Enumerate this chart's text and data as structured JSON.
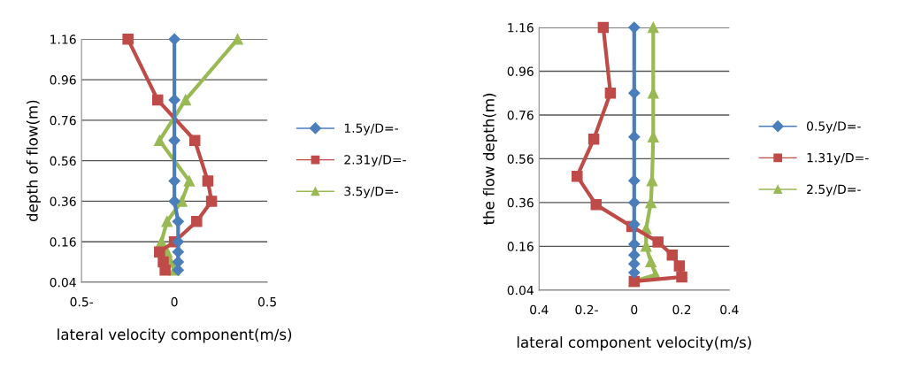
{
  "chart_data": [
    {
      "type": "line",
      "xlabel": "lateral velocity component(m/s)",
      "ylabel": "depth of flow(m)",
      "xlim": [
        -0.5,
        0.5
      ],
      "xticks": [
        {
          "value": -0.5,
          "label": "0.5-"
        },
        0,
        0.5
      ],
      "ylim": [
        -0.04,
        1.16
      ],
      "yticks": [
        {
          "value": -0.04,
          "label": "0.04"
        },
        0.16,
        0.36,
        0.56,
        0.76,
        0.96,
        1.16
      ],
      "grid": "y",
      "legend": "right",
      "line_style": "solid",
      "series": [
        {
          "name": "1.5y/D=-",
          "color": "#4a7ebb",
          "marker": "diamond",
          "x": [
            0,
            0,
            0,
            0,
            0,
            0.02,
            0.02,
            0.02,
            0.02,
            0.02
          ],
          "values": [
            1.16,
            0.86,
            0.66,
            0.46,
            0.36,
            0.26,
            0.16,
            0.11,
            0.06,
            0.02
          ]
        },
        {
          "name": "2.31y/D=-",
          "color": "#be4b48",
          "marker": "square",
          "x": [
            -0.25,
            -0.09,
            0.11,
            0.18,
            0.2,
            0.12,
            0,
            -0.08,
            -0.06,
            -0.05
          ],
          "values": [
            1.16,
            0.86,
            0.66,
            0.46,
            0.36,
            0.26,
            0.16,
            0.11,
            0.06,
            0.02
          ]
        },
        {
          "name": "3.5y/D=-",
          "color": "#98b954",
          "marker": "triangle",
          "x": [
            0.34,
            0.06,
            -0.08,
            0.08,
            0.04,
            -0.04,
            -0.07,
            -0.04,
            -0.02,
            0
          ],
          "values": [
            1.16,
            0.86,
            0.66,
            0.46,
            0.36,
            0.26,
            0.16,
            0.11,
            0.06,
            0.02
          ]
        }
      ]
    },
    {
      "type": "line",
      "xlabel": "lateral component velocity(m/s)",
      "ylabel": "the flow depth(m)",
      "xlim": [
        -0.4,
        0.4
      ],
      "xticks": [
        {
          "value": -0.4,
          "label": "0.4"
        },
        {
          "value": -0.2,
          "label": "0.2-"
        },
        0,
        0.2,
        0.4
      ],
      "ylim": [
        -0.04,
        1.16
      ],
      "yticks": [
        {
          "value": -0.04,
          "label": "0.04"
        },
        0.16,
        0.36,
        0.56,
        0.76,
        0.96,
        1.16
      ],
      "grid": "y",
      "legend": "right",
      "line_style": "solid",
      "series": [
        {
          "name": "0.5y/D=-",
          "color": "#4a7ebb",
          "marker": "diamond",
          "x": [
            0,
            0,
            0,
            0,
            0,
            0,
            0,
            0,
            0,
            0
          ],
          "values": [
            1.16,
            0.86,
            0.66,
            0.46,
            0.36,
            0.26,
            0.17,
            0.12,
            0.08,
            0.04
          ]
        },
        {
          "name": "1.31y/D=-",
          "color": "#be4b48",
          "marker": "square",
          "x": [
            -0.13,
            -0.1,
            -0.17,
            -0.24,
            -0.16,
            -0.01,
            0.1,
            0.16,
            0.19,
            0.2,
            0
          ],
          "values": [
            1.16,
            0.86,
            0.65,
            0.48,
            0.35,
            0.25,
            0.18,
            0.12,
            0.07,
            0.02,
            0
          ]
        },
        {
          "name": "2.5y/D=-",
          "color": "#98b954",
          "marker": "triangle",
          "x": [
            0.08,
            0.08,
            0.08,
            0.075,
            0.07,
            0.05,
            0.05,
            0.07,
            0.09,
            0
          ],
          "values": [
            1.16,
            0.86,
            0.66,
            0.46,
            0.36,
            0.24,
            0.16,
            0.09,
            0.03,
            0
          ]
        }
      ]
    }
  ]
}
